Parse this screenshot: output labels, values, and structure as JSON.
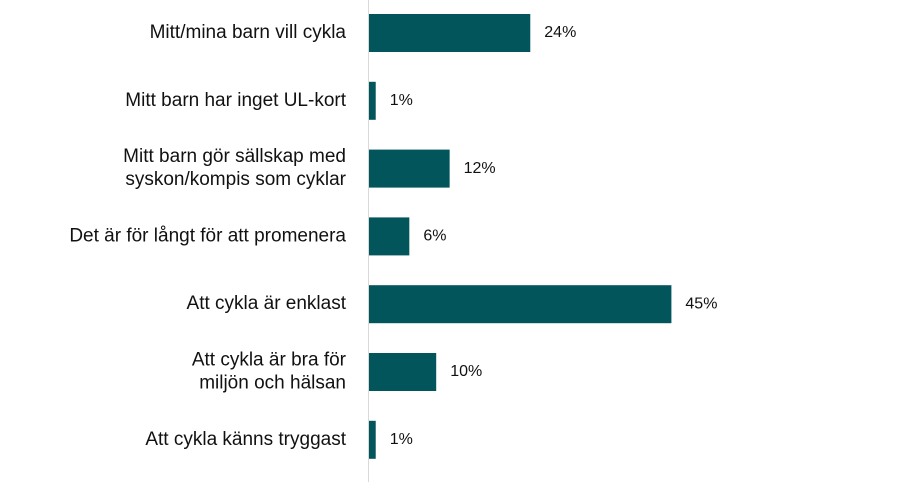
{
  "chart_data": {
    "type": "bar",
    "orientation": "horizontal",
    "title": "",
    "xlabel": "",
    "ylabel": "",
    "categories": [
      [
        "Mitt/mina barn vill cykla"
      ],
      [
        "Mitt barn har inget UL-kort"
      ],
      [
        "Mitt barn gör sällskap med",
        "syskon/kompis som cyklar"
      ],
      [
        "Det är för långt för att promenera"
      ],
      [
        "Att cykla är enklast"
      ],
      [
        "Att cykla är bra för",
        "miljön och hälsan"
      ],
      [
        "Att cykla känns tryggast"
      ]
    ],
    "values": [
      24,
      1,
      12,
      6,
      45,
      10,
      1
    ],
    "value_labels": [
      "24%",
      "1%",
      "12%",
      "6%",
      "45%",
      "10%",
      "1%"
    ],
    "unit": "%",
    "xlim": [
      0,
      50
    ],
    "grid": false,
    "legend": "none",
    "bar_color": "#02555b"
  }
}
